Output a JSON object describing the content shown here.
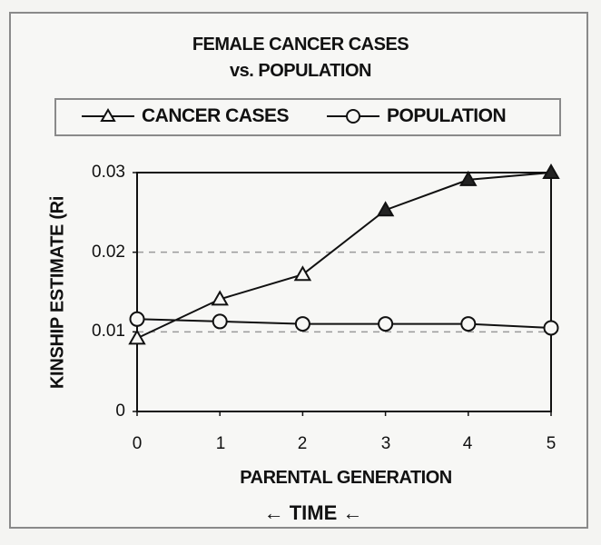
{
  "chart_data": {
    "type": "line",
    "title": "FEMALE CANCER CASES vs. POPULATION",
    "title_lines": [
      "FEMALE CANCER CASES",
      "vs. POPULATION"
    ],
    "xlabel": "PARENTAL GENERATION",
    "xlabel_sub": "← TIME ←",
    "ylabel": "KINSHIP ESTIMATE (Ri",
    "x": [
      0,
      1,
      2,
      3,
      4,
      5
    ],
    "x_ticks": [
      "0",
      "1",
      "2",
      "3",
      "4",
      "5"
    ],
    "y_ticks": [
      "0",
      "0.01",
      "0.02",
      "0.03"
    ],
    "ylim": [
      0,
      0.03
    ],
    "grid": "dashed horizontal at 0.01 and 0.02",
    "legend_position": "top",
    "series": [
      {
        "name": "CANCER CASES",
        "marker": "triangle",
        "values": [
          0.0092,
          0.0141,
          0.0172,
          0.0253,
          0.0291,
          0.03
        ]
      },
      {
        "name": "POPULATION",
        "marker": "circle",
        "values": [
          0.0116,
          0.0113,
          0.011,
          0.011,
          0.011,
          0.0105
        ]
      }
    ]
  },
  "colors": {
    "line": "#111111",
    "grid": "#9a9a9a",
    "frame": "#8a8a8a",
    "background": "#f7f7f5"
  }
}
